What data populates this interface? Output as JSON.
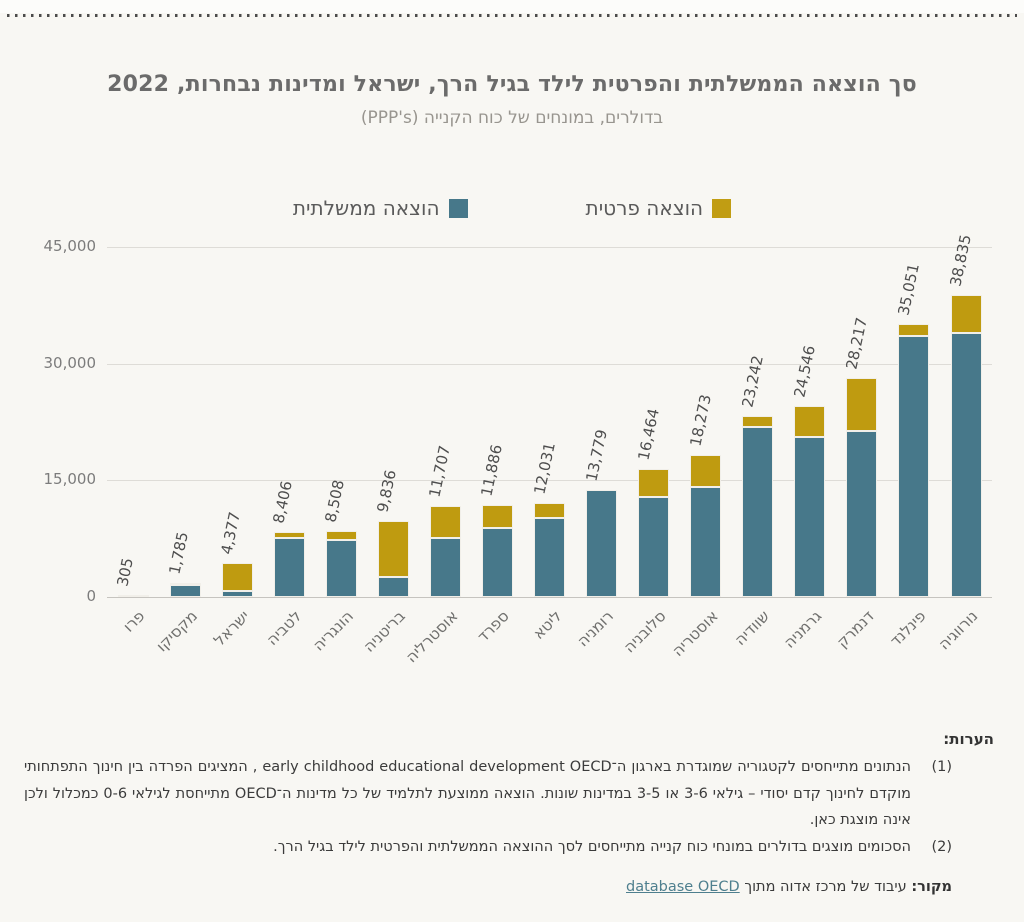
{
  "header": {
    "title": "סך הוצאה הממשלתית והפרטית לילד בגיל הרך, ישראל ומדינות נבחרות, 2022",
    "subtitle": "בדולרים, במונחים של כוח הקנייה (PPP's)"
  },
  "legend": {
    "items": [
      {
        "label": "הוצאה פרטית",
        "color": "#c19d13"
      },
      {
        "label": "הוצאה ממשלתית",
        "color": "#47788a"
      }
    ]
  },
  "chart_data": {
    "type": "bar",
    "stacked": true,
    "title": "סך הוצאה הממשלתית והפרטית לילד בגיל הרך, ישראל ומדינות נבחרות, 2022",
    "subtitle": "בדולרים, במונחים של כוח הקנייה (PPP's)",
    "categories": [
      "פרו",
      "מקסיקו",
      "ישראל",
      "לטביה",
      "הונגריה",
      "בריטניה",
      "אוסטרליה",
      "ספרד",
      "ליטא",
      "רומניה",
      "סלובניה",
      "אוסטריה",
      "שוודיה",
      "גרמניה",
      "דנמרק",
      "פינלנד",
      "נורווגיה"
    ],
    "series": [
      {
        "name": "הוצאה ממשלתית",
        "color": "#47788a",
        "values": [
          290,
          1560,
          810,
          7600,
          7300,
          2550,
          7600,
          8900,
          10100,
          13779,
          12850,
          14100,
          21800,
          20550,
          21300,
          33500,
          34000
        ]
      },
      {
        "name": "הוצאה פרטית",
        "color": "#bf9b10",
        "values": [
          15,
          225,
          3567,
          806,
          1208,
          7286,
          4107,
          2986,
          1931,
          0,
          3614,
          4173,
          1442,
          3996,
          6917,
          1551,
          4835
        ]
      }
    ],
    "totals": [
      305,
      1785,
      4377,
      8406,
      8508,
      9836,
      11707,
      11886,
      12031,
      13779,
      16464,
      18273,
      23242,
      24546,
      28217,
      35051,
      38835
    ],
    "total_labels": [
      "305",
      "1,785",
      "4,377",
      "8,406",
      "8,508",
      "9,836",
      "11,707",
      "11,886",
      "12,031",
      "13,779",
      "16,464",
      "18,273",
      "23,242",
      "24,546",
      "28,217",
      "35,051",
      "38,835"
    ],
    "ytick_values": [
      0,
      15000,
      30000,
      45000
    ],
    "ytick_labels": [
      "0",
      "15,000",
      "30,000",
      "45,000"
    ],
    "ylim": [
      0,
      45000
    ],
    "grid": true,
    "legend_position": "top"
  },
  "notes": {
    "header": "הערות:",
    "items": [
      {
        "marker": "(1)",
        "text": "הנתונים מתייחסים לקטגוריה שמוגדרת בארגון ה־early childhood educational development OECD , המציגים הפרדה בין חינוך התפתחותי מוקדם לחינוך קדם יסודי – גילאי 3-6 או 3-5 במדינות שונות. הוצאה ממוצעת לתלמיד של כל מדינות ה־OECD מתייחסת לגילאי 0-6 כמכלול ולכן אינה מוצגת כאן."
      },
      {
        "marker": "(2)",
        "text": "הסכומים מוצגים בדולרים במונחי כוח קנייה מתייחסים לסך ההוצאה הממשלתית והפרטית לילד בגיל הרך."
      }
    ]
  },
  "source": {
    "label": "מקור:",
    "text": "עיבוד של מרכז אדוה מתוך",
    "link_text": "database OECD"
  },
  "colors": {
    "background": "#f8f7f3",
    "government_bar": "#47788a",
    "private_bar": "#bf9b10",
    "gridline": "#dedcd7",
    "title_text": "#6b6b6b",
    "link": "#4e7f8e"
  }
}
